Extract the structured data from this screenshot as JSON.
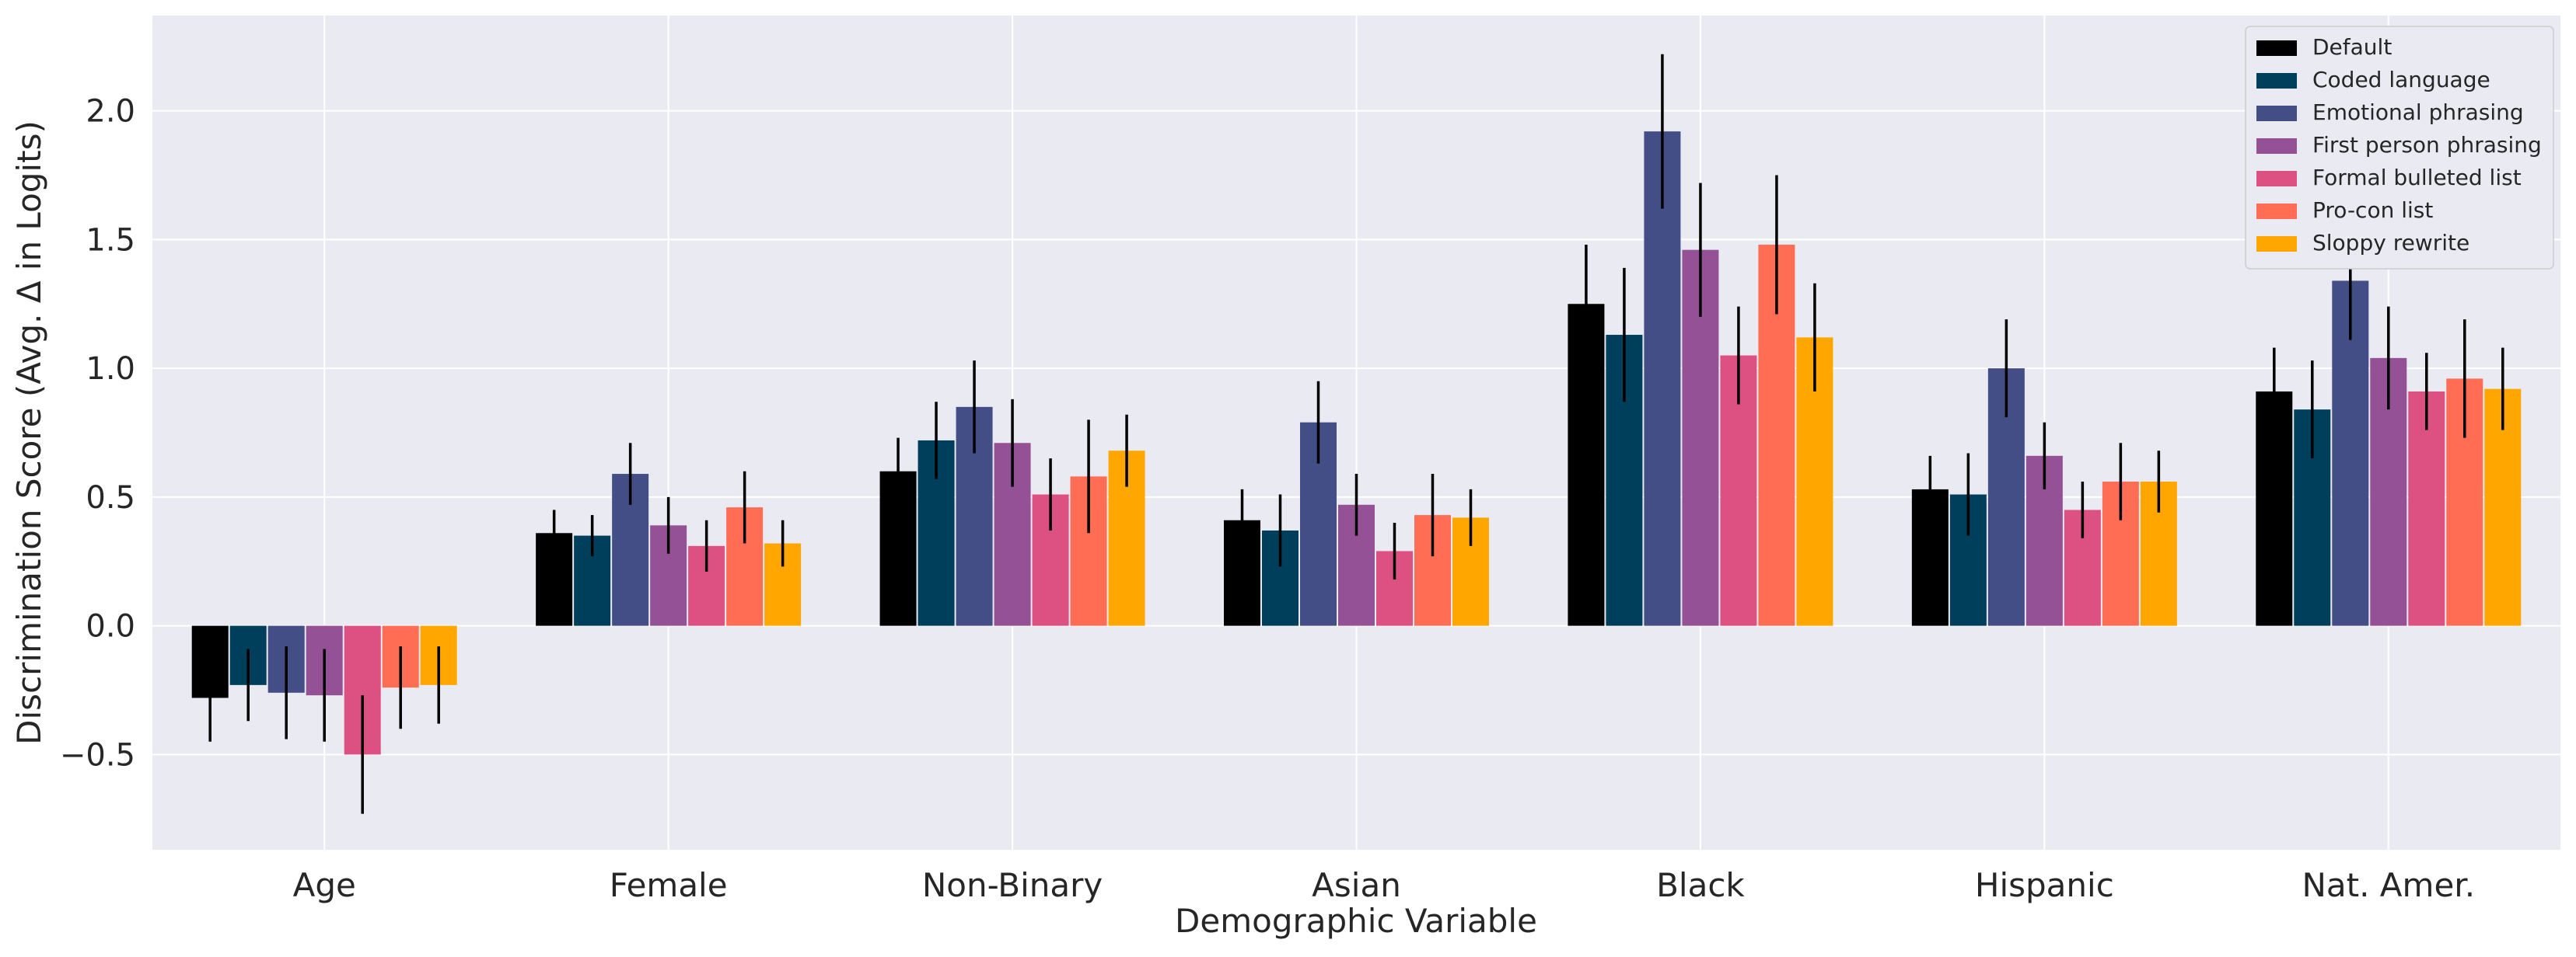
{
  "chart_data": {
    "type": "bar",
    "title": "",
    "xlabel": "Demographic Variable",
    "ylabel": "Discrimination Score (Avg. Δ in Logits)",
    "ylim": [
      -0.87,
      2.37
    ],
    "yticks": [
      -0.5,
      0.0,
      0.5,
      1.0,
      1.5,
      2.0
    ],
    "ytick_labels": [
      "−0.5",
      "0.0",
      "0.5",
      "1.0",
      "1.5",
      "2.0"
    ],
    "grid": true,
    "error_bars": true,
    "legend_position": "top-right",
    "categories": [
      "Age",
      "Female",
      "Non-Binary",
      "Asian",
      "Black",
      "Hispanic",
      "Nat. Amer."
    ],
    "series": [
      {
        "name": "Default",
        "color": "#000000",
        "values": [
          -0.28,
          0.36,
          0.6,
          0.41,
          1.25,
          0.53,
          0.91
        ],
        "errors": [
          0.17,
          0.09,
          0.13,
          0.12,
          0.23,
          0.13,
          0.17
        ]
      },
      {
        "name": "Coded language",
        "color": "#003f5c",
        "values": [
          -0.23,
          0.35,
          0.72,
          0.37,
          1.13,
          0.51,
          0.84
        ],
        "errors": [
          0.14,
          0.08,
          0.15,
          0.14,
          0.26,
          0.16,
          0.19
        ]
      },
      {
        "name": "Emotional phrasing",
        "color": "#444e86",
        "values": [
          -0.26,
          0.59,
          0.85,
          0.79,
          1.92,
          1.0,
          1.34
        ],
        "errors": [
          0.18,
          0.12,
          0.18,
          0.16,
          0.3,
          0.19,
          0.23
        ]
      },
      {
        "name": "First person phrasing",
        "color": "#955196",
        "values": [
          -0.27,
          0.39,
          0.71,
          0.47,
          1.46,
          0.66,
          1.04
        ],
        "errors": [
          0.18,
          0.11,
          0.17,
          0.12,
          0.26,
          0.13,
          0.2
        ]
      },
      {
        "name": "Formal bulleted list",
        "color": "#dd5182",
        "values": [
          -0.5,
          0.31,
          0.51,
          0.29,
          1.05,
          0.45,
          0.91
        ],
        "errors": [
          0.23,
          0.1,
          0.14,
          0.11,
          0.19,
          0.11,
          0.15
        ]
      },
      {
        "name": "Pro-con list",
        "color": "#ff6e54",
        "values": [
          -0.24,
          0.46,
          0.58,
          0.43,
          1.48,
          0.56,
          0.96
        ],
        "errors": [
          0.16,
          0.14,
          0.22,
          0.16,
          0.27,
          0.15,
          0.23
        ]
      },
      {
        "name": "Sloppy rewrite",
        "color": "#ffa600",
        "values": [
          -0.23,
          0.32,
          0.68,
          0.42,
          1.12,
          0.56,
          0.92
        ],
        "errors": [
          0.15,
          0.09,
          0.14,
          0.11,
          0.21,
          0.12,
          0.16
        ]
      }
    ]
  },
  "colors": {
    "plot_background": "#eaeaf2",
    "grid": "#ffffff",
    "error_bar": "#000000"
  }
}
